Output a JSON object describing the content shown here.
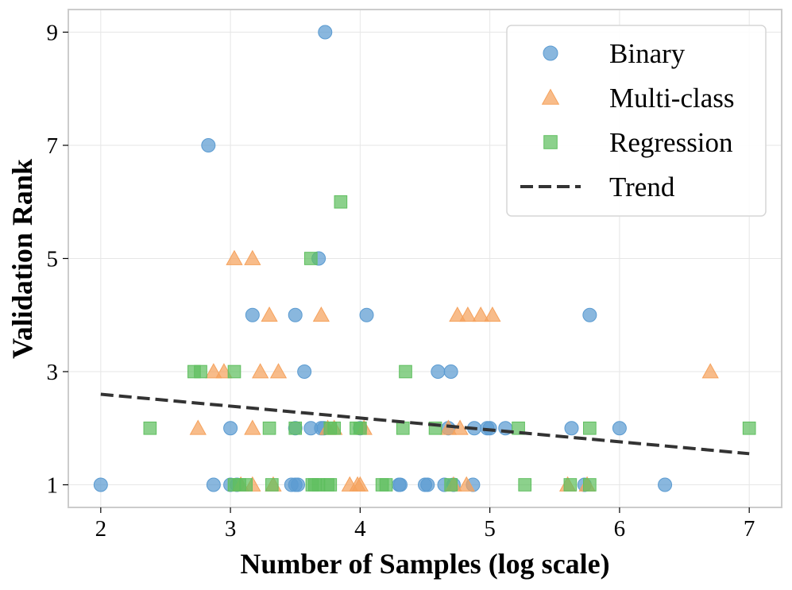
{
  "chart_data": {
    "type": "scatter",
    "xlabel": "Number of Samples (log scale)",
    "ylabel": "Validation Rank",
    "xlim": [
      1.75,
      7.25
    ],
    "ylim": [
      0.6,
      9.4
    ],
    "xticks": [
      2,
      3,
      4,
      5,
      6,
      7
    ],
    "yticks": [
      1,
      3,
      5,
      7,
      9
    ],
    "grid": true,
    "legend_position": "top-right",
    "series": [
      {
        "name": "Binary",
        "marker": "circle",
        "color": "#5b9bd1",
        "points": [
          [
            2.0,
            1
          ],
          [
            2.87,
            1
          ],
          [
            3.0,
            1
          ],
          [
            3.05,
            1
          ],
          [
            3.47,
            1
          ],
          [
            3.5,
            1
          ],
          [
            3.52,
            1
          ],
          [
            4.3,
            1
          ],
          [
            4.31,
            1
          ],
          [
            4.5,
            1
          ],
          [
            4.52,
            1
          ],
          [
            4.65,
            1
          ],
          [
            4.72,
            1
          ],
          [
            4.87,
            1
          ],
          [
            5.73,
            1
          ],
          [
            6.35,
            1
          ],
          [
            3.0,
            2
          ],
          [
            3.5,
            2
          ],
          [
            3.62,
            2
          ],
          [
            3.7,
            2
          ],
          [
            3.72,
            2
          ],
          [
            4.0,
            2
          ],
          [
            4.68,
            2
          ],
          [
            4.88,
            2
          ],
          [
            4.98,
            2
          ],
          [
            5.0,
            2
          ],
          [
            5.12,
            2
          ],
          [
            5.63,
            2
          ],
          [
            6.0,
            2
          ],
          [
            3.57,
            3
          ],
          [
            4.6,
            3
          ],
          [
            4.7,
            3
          ],
          [
            3.17,
            4
          ],
          [
            3.5,
            4
          ],
          [
            4.05,
            4
          ],
          [
            5.77,
            4
          ],
          [
            3.68,
            5
          ],
          [
            2.83,
            7
          ],
          [
            3.73,
            9
          ]
        ]
      },
      {
        "name": "Multi-class",
        "marker": "triangle",
        "color": "#f5a25d",
        "points": [
          [
            3.08,
            1
          ],
          [
            3.17,
            1
          ],
          [
            3.33,
            1
          ],
          [
            3.92,
            1
          ],
          [
            3.98,
            1
          ],
          [
            4.0,
            1
          ],
          [
            4.72,
            1
          ],
          [
            4.82,
            1
          ],
          [
            5.6,
            1
          ],
          [
            5.75,
            1
          ],
          [
            2.75,
            2
          ],
          [
            3.17,
            2
          ],
          [
            3.75,
            2
          ],
          [
            3.8,
            2
          ],
          [
            4.03,
            2
          ],
          [
            4.68,
            2
          ],
          [
            4.77,
            2
          ],
          [
            2.87,
            3
          ],
          [
            2.95,
            3
          ],
          [
            3.23,
            3
          ],
          [
            3.37,
            3
          ],
          [
            6.7,
            3
          ],
          [
            3.3,
            4
          ],
          [
            3.7,
            4
          ],
          [
            4.75,
            4
          ],
          [
            4.83,
            4
          ],
          [
            4.93,
            4
          ],
          [
            5.02,
            4
          ],
          [
            3.03,
            5
          ],
          [
            3.17,
            5
          ]
        ]
      },
      {
        "name": "Regression",
        "marker": "square",
        "color": "#5fbf5f",
        "points": [
          [
            3.03,
            1
          ],
          [
            3.07,
            1
          ],
          [
            3.12,
            1
          ],
          [
            3.32,
            1
          ],
          [
            3.63,
            1
          ],
          [
            3.65,
            1
          ],
          [
            3.68,
            1
          ],
          [
            3.75,
            1
          ],
          [
            3.77,
            1
          ],
          [
            4.17,
            1
          ],
          [
            4.2,
            1
          ],
          [
            4.7,
            1
          ],
          [
            5.27,
            1
          ],
          [
            5.62,
            1
          ],
          [
            5.77,
            1
          ],
          [
            2.38,
            2
          ],
          [
            3.3,
            2
          ],
          [
            3.5,
            2
          ],
          [
            3.77,
            2
          ],
          [
            3.8,
            2
          ],
          [
            3.97,
            2
          ],
          [
            4.0,
            2
          ],
          [
            4.33,
            2
          ],
          [
            4.58,
            2
          ],
          [
            5.22,
            2
          ],
          [
            5.77,
            2
          ],
          [
            7.0,
            2
          ],
          [
            2.72,
            3
          ],
          [
            2.77,
            3
          ],
          [
            3.03,
            3
          ],
          [
            4.35,
            3
          ],
          [
            3.62,
            5
          ],
          [
            3.85,
            6
          ]
        ]
      }
    ],
    "trend": {
      "name": "Trend",
      "style": "dashed",
      "color": "#333333",
      "x": [
        2.0,
        7.0
      ],
      "y": [
        2.6,
        1.55
      ]
    }
  }
}
